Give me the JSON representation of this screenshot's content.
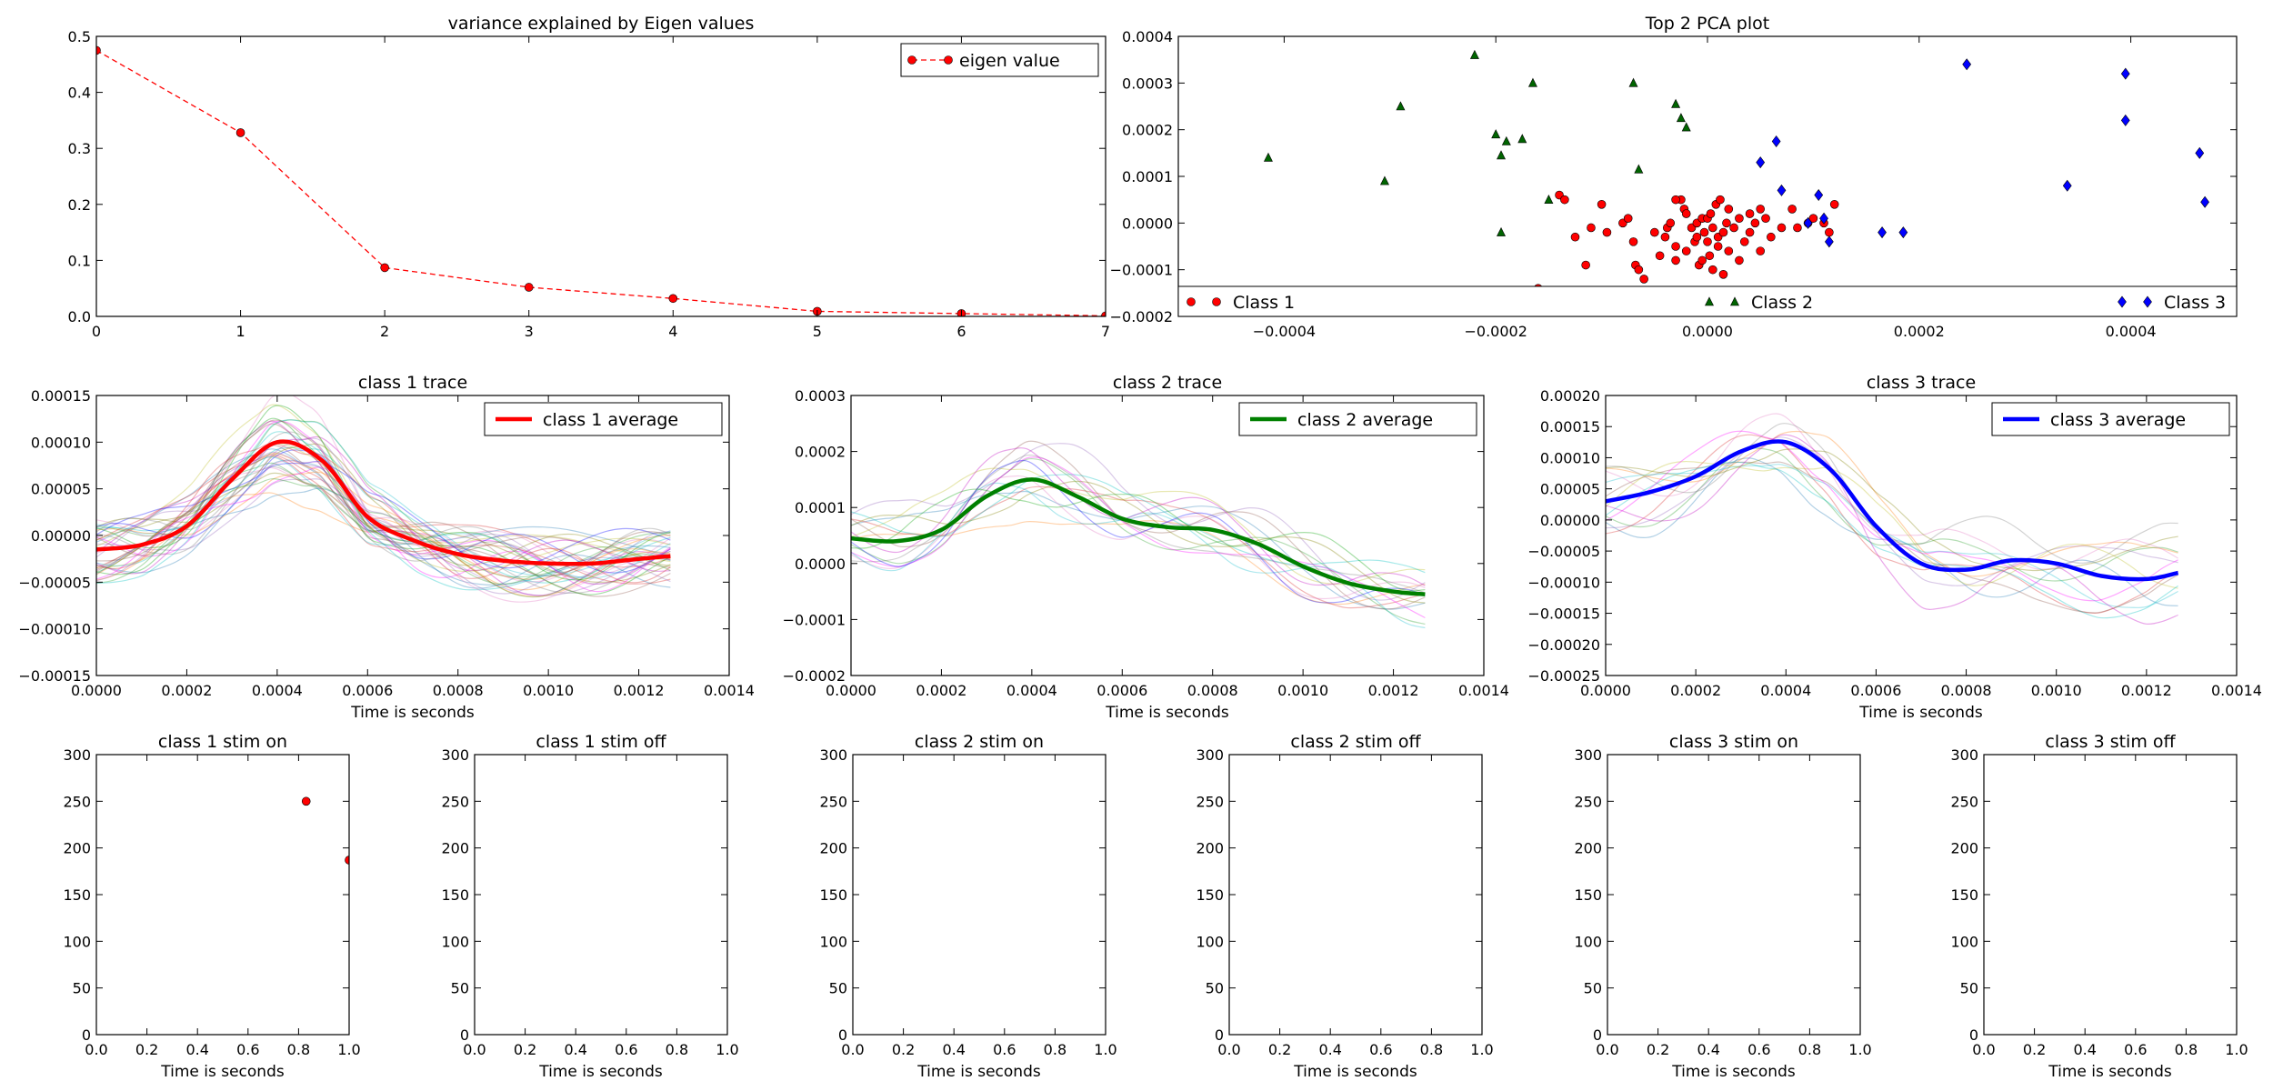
{
  "figure": {
    "background": "#ffffff"
  },
  "chart_data": [
    {
      "id": "eigen",
      "type": "line",
      "title": "variance explained by Eigen values",
      "xlabel": "",
      "ylabel": "",
      "xlim": [
        0,
        7
      ],
      "ylim": [
        0,
        0.5
      ],
      "xticks": [
        0,
        1,
        2,
        3,
        4,
        5,
        6,
        7
      ],
      "yticks": [
        0.0,
        0.1,
        0.2,
        0.3,
        0.4,
        0.5
      ],
      "xtick_labels": [
        "0",
        "1",
        "2",
        "3",
        "4",
        "5",
        "6",
        "7"
      ],
      "ytick_labels": [
        "0.0",
        "0.1",
        "0.2",
        "0.3",
        "0.4",
        "0.5"
      ],
      "grid": false,
      "legend_position": "top-right",
      "series": [
        {
          "name": "eigen value",
          "color": "#ff0000",
          "style": "dashed-markers",
          "x": [
            0,
            1,
            2,
            3,
            4,
            5,
            6,
            7
          ],
          "y": [
            0.475,
            0.328,
            0.087,
            0.052,
            0.032,
            0.009,
            0.005,
            0.001
          ]
        }
      ]
    },
    {
      "id": "pca",
      "type": "scatter",
      "title": "Top 2 PCA plot",
      "xlabel": "",
      "ylabel": "",
      "xlim": [
        -0.0005,
        0.0005
      ],
      "ylim": [
        -0.0002,
        0.0004
      ],
      "xticks": [
        -0.0004,
        -0.0002,
        0.0,
        0.0002,
        0.0004
      ],
      "yticks": [
        -0.0002,
        -0.0001,
        0.0,
        0.0001,
        0.0002,
        0.0003,
        0.0004
      ],
      "xtick_labels": [
        "−0.0004",
        "−0.0002",
        "0.0000",
        "0.0002",
        "0.0004"
      ],
      "ytick_labels": [
        "−0.0002",
        "−0.0001",
        "0.0000",
        "0.0001",
        "0.0002",
        "0.0003",
        "0.0004"
      ],
      "grid": false,
      "legend_position": "bottom (expanded across)",
      "series": [
        {
          "name": "Class 1",
          "color": "#ff0000",
          "marker": "circle",
          "points": [
            [
              -0.00014,
              6e-05
            ],
            [
              -0.000135,
              5e-05
            ],
            [
              -0.000125,
              -3e-05
            ],
            [
              -0.000115,
              -9e-05
            ],
            [
              -0.00011,
              -1e-05
            ],
            [
              -0.0001,
              4e-05
            ],
            [
              -9.5e-05,
              -2e-05
            ],
            [
              -8e-05,
              0.0
            ],
            [
              -7.5e-05,
              1e-05
            ],
            [
              -7e-05,
              -4e-05
            ],
            [
              -6.8e-05,
              -9e-05
            ],
            [
              -6.5e-05,
              -0.0001
            ],
            [
              -6e-05,
              -0.00012
            ],
            [
              -5e-05,
              -2e-05
            ],
            [
              -4.5e-05,
              -7e-05
            ],
            [
              -4e-05,
              -3e-05
            ],
            [
              -3.8e-05,
              -1e-05
            ],
            [
              -3.5e-05,
              0.0
            ],
            [
              -3e-05,
              -5e-05
            ],
            [
              -3e-05,
              -8e-05
            ],
            [
              -2.5e-05,
              5e-05
            ],
            [
              -2.2e-05,
              3e-05
            ],
            [
              -2e-05,
              2e-05
            ],
            [
              -2e-05,
              -6e-05
            ],
            [
              -1.5e-05,
              -1e-05
            ],
            [
              -1.2e-05,
              -4e-05
            ],
            [
              -1e-05,
              0.0
            ],
            [
              -1e-05,
              -3e-05
            ],
            [
              -8e-06,
              -9e-05
            ],
            [
              -5e-06,
              1e-05
            ],
            [
              -5e-06,
              -8e-05
            ],
            [
              -3e-06,
              -2e-05
            ],
            [
              0.0,
              1e-05
            ],
            [
              0.0,
              -4e-05
            ],
            [
              2e-06,
              -7e-05
            ],
            [
              3e-06,
              2e-05
            ],
            [
              5e-06,
              -0.0001
            ],
            [
              5e-06,
              -1e-05
            ],
            [
              8e-06,
              4e-05
            ],
            [
              1e-05,
              -3e-05
            ],
            [
              1e-05,
              -5e-05
            ],
            [
              1.2e-05,
              5e-05
            ],
            [
              1.5e-05,
              -2e-05
            ],
            [
              1.5e-05,
              -0.00011
            ],
            [
              1.8e-05,
              0.0
            ],
            [
              2e-05,
              3e-05
            ],
            [
              2e-05,
              -6e-05
            ],
            [
              2.5e-05,
              -1e-05
            ],
            [
              3e-05,
              1e-05
            ],
            [
              3e-05,
              -8e-05
            ],
            [
              3.5e-05,
              -4e-05
            ],
            [
              4e-05,
              2e-05
            ],
            [
              4e-05,
              -2e-05
            ],
            [
              4.5e-05,
              0.0
            ],
            [
              5e-05,
              -6e-05
            ],
            [
              5.5e-05,
              1e-05
            ],
            [
              6e-05,
              -3e-05
            ],
            [
              7e-05,
              -1e-05
            ],
            [
              8e-05,
              3e-05
            ],
            [
              8.5e-05,
              -1e-05
            ],
            [
              9.5e-05,
              0.0
            ],
            [
              0.0001,
              1e-05
            ],
            [
              0.00011,
              0.0
            ],
            [
              0.000115,
              -2e-05
            ],
            [
              0.00012,
              4e-05
            ],
            [
              -0.00016,
              -0.00014
            ],
            [
              -3e-05,
              5e-05
            ],
            [
              5e-05,
              3e-05
            ]
          ]
        },
        {
          "name": "Class 2",
          "color": "#006400",
          "marker": "triangle",
          "points": [
            [
              -0.000415,
              0.00014
            ],
            [
              -0.000305,
              9e-05
            ],
            [
              -0.00029,
              0.00025
            ],
            [
              -0.00022,
              0.00036
            ],
            [
              -0.0002,
              0.00019
            ],
            [
              -0.000195,
              0.000145
            ],
            [
              -0.000195,
              -2e-05
            ],
            [
              -0.00019,
              0.000175
            ],
            [
              -0.000175,
              0.00018
            ],
            [
              -0.000165,
              0.0003
            ],
            [
              -0.00015,
              5e-05
            ],
            [
              -7e-05,
              0.0003
            ],
            [
              -6.5e-05,
              0.000115
            ],
            [
              -3e-05,
              0.000255
            ],
            [
              -2.5e-05,
              0.000225
            ],
            [
              -2e-05,
              0.000205
            ],
            [
              -9e-05,
              -0.00016
            ]
          ]
        },
        {
          "name": "Class 3",
          "color": "#0000ff",
          "marker": "diamond",
          "points": [
            [
              5e-05,
              0.00013
            ],
            [
              6.5e-05,
              0.000175
            ],
            [
              7e-05,
              7e-05
            ],
            [
              9.5e-05,
              0.0
            ],
            [
              0.000105,
              6e-05
            ],
            [
              0.00011,
              1e-05
            ],
            [
              0.000115,
              -4e-05
            ],
            [
              0.000165,
              -2e-05
            ],
            [
              0.000185,
              -2e-05
            ],
            [
              0.000245,
              0.00034
            ],
            [
              0.00034,
              8e-05
            ],
            [
              0.000395,
              0.00032
            ],
            [
              0.000395,
              0.00022
            ],
            [
              0.000465,
              0.00015
            ],
            [
              0.00047,
              4.5e-05
            ]
          ]
        }
      ]
    },
    {
      "id": "trace1",
      "type": "line",
      "title": "class 1 trace",
      "xlabel": "Time is seconds",
      "ylabel": "",
      "xlim": [
        0,
        0.0014
      ],
      "ylim": [
        -0.00015,
        0.00015
      ],
      "xticks": [
        0,
        0.0002,
        0.0004,
        0.0006,
        0.0008,
        0.001,
        0.0012,
        0.0014
      ],
      "yticks": [
        -0.00015,
        -0.0001,
        -5e-05,
        0.0,
        5e-05,
        0.0001,
        0.00015
      ],
      "xtick_labels": [
        "0.0000",
        "0.0002",
        "0.0004",
        "0.0006",
        "0.0008",
        "0.0010",
        "0.0012",
        "0.0014"
      ],
      "ytick_labels": [
        "−0.00015",
        "−0.00010",
        "−0.00005",
        "0.00000",
        "0.00005",
        "0.00010",
        "0.00015"
      ],
      "grid": false,
      "legend_position": "top-right",
      "trace_count": 40,
      "trace_spread": 3.5e-05,
      "series": [
        {
          "name": "class 1 average",
          "color": "#ff0000",
          "x": [
            0,
            0.0001,
            0.0002,
            0.0003,
            0.0004,
            0.0005,
            0.0006,
            0.0007,
            0.0008,
            0.0009,
            0.001,
            0.0011,
            0.0012,
            0.00127
          ],
          "y": [
            -1.5e-05,
            -1e-05,
            1e-05,
            6e-05,
            0.0001,
            8e-05,
            2e-05,
            -5e-06,
            -2e-05,
            -2.7e-05,
            -3e-05,
            -3e-05,
            -2.5e-05,
            -2.2e-05
          ]
        }
      ]
    },
    {
      "id": "trace2",
      "type": "line",
      "title": "class 2 trace",
      "xlabel": "Time is seconds",
      "ylabel": "",
      "xlim": [
        0,
        0.0014
      ],
      "ylim": [
        -0.0002,
        0.0003
      ],
      "xticks": [
        0,
        0.0002,
        0.0004,
        0.0006,
        0.0008,
        0.001,
        0.0012,
        0.0014
      ],
      "yticks": [
        -0.0002,
        -0.0001,
        0.0,
        0.0001,
        0.0002,
        0.0003
      ],
      "xtick_labels": [
        "0.0000",
        "0.0002",
        "0.0004",
        "0.0006",
        "0.0008",
        "0.0010",
        "0.0012",
        "0.0014"
      ],
      "ytick_labels": [
        "−0.0002",
        "−0.0001",
        "0.0000",
        "0.0001",
        "0.0002",
        "0.0003"
      ],
      "grid": false,
      "legend_position": "top-right",
      "trace_count": 16,
      "trace_spread": 6e-05,
      "series": [
        {
          "name": "class 2 average",
          "color": "#008000",
          "x": [
            0,
            0.0001,
            0.0002,
            0.0003,
            0.0004,
            0.0005,
            0.0006,
            0.0007,
            0.0008,
            0.0009,
            0.001,
            0.0011,
            0.0012,
            0.00127
          ],
          "y": [
            4.5e-05,
            4e-05,
            6e-05,
            0.00012,
            0.00015,
            0.00012,
            8e-05,
            6.5e-05,
            6e-05,
            3.5e-05,
            -5e-06,
            -3.5e-05,
            -5e-05,
            -5.5e-05
          ]
        }
      ]
    },
    {
      "id": "trace3",
      "type": "line",
      "title": "class 3 trace",
      "xlabel": "Time is seconds",
      "ylabel": "",
      "xlim": [
        0,
        0.0014
      ],
      "ylim": [
        -0.00025,
        0.0002
      ],
      "xticks": [
        0,
        0.0002,
        0.0004,
        0.0006,
        0.0008,
        0.001,
        0.0012,
        0.0014
      ],
      "yticks": [
        -0.00025,
        -0.0002,
        -0.00015,
        -0.0001,
        -5e-05,
        0.0,
        5e-05,
        0.0001,
        0.00015,
        0.0002
      ],
      "xtick_labels": [
        "0.0000",
        "0.0002",
        "0.0004",
        "0.0006",
        "0.0008",
        "0.0010",
        "0.0012",
        "0.0014"
      ],
      "ytick_labels": [
        "−0.00025",
        "−0.00020",
        "−0.00015",
        "−0.00010",
        "−0.00005",
        "0.00000",
        "0.00005",
        "0.00010",
        "0.00015",
        "0.00020"
      ],
      "grid": false,
      "legend_position": "top-right",
      "trace_count": 14,
      "trace_spread": 6e-05,
      "series": [
        {
          "name": "class 3 average",
          "color": "#0000ff",
          "x": [
            0,
            0.0001,
            0.0002,
            0.0003,
            0.0004,
            0.0005,
            0.0006,
            0.0007,
            0.0008,
            0.0009,
            0.001,
            0.0011,
            0.0012,
            0.00127
          ],
          "y": [
            3e-05,
            4.5e-05,
            7e-05,
            0.00011,
            0.000125,
            8e-05,
            -1e-05,
            -7e-05,
            -8e-05,
            -6.5e-05,
            -7e-05,
            -9e-05,
            -9.5e-05,
            -8.5e-05
          ]
        }
      ]
    },
    {
      "id": "c1on",
      "type": "scatter",
      "title": "class 1 stim on",
      "xlabel": "Time is seconds",
      "ylabel": "",
      "xlim": [
        0,
        1
      ],
      "ylim": [
        0,
        300
      ],
      "xticks": [
        0,
        0.2,
        0.4,
        0.6,
        0.8,
        1.0
      ],
      "yticks": [
        0,
        50,
        100,
        150,
        200,
        250,
        300
      ],
      "xtick_labels": [
        "0.0",
        "0.2",
        "0.4",
        "0.6",
        "0.8",
        "1.0"
      ],
      "ytick_labels": [
        "0",
        "50",
        "100",
        "150",
        "200",
        "250",
        "300"
      ],
      "grid": false,
      "series": [
        {
          "color": "#ff0000",
          "marker": "circle",
          "points": [
            [
              0.83,
              250
            ],
            [
              1.0,
              187
            ]
          ]
        }
      ]
    },
    {
      "id": "c1off",
      "type": "scatter",
      "title": "class 1 stim off",
      "xlabel": "Time is seconds",
      "ylabel": "",
      "xlim": [
        0,
        1
      ],
      "ylim": [
        0,
        300
      ],
      "xticks": [
        0,
        0.2,
        0.4,
        0.6,
        0.8,
        1.0
      ],
      "yticks": [
        0,
        50,
        100,
        150,
        200,
        250,
        300
      ],
      "xtick_labels": [
        "0.0",
        "0.2",
        "0.4",
        "0.6",
        "0.8",
        "1.0"
      ],
      "ytick_labels": [
        "0",
        "50",
        "100",
        "150",
        "200",
        "250",
        "300"
      ],
      "grid": false,
      "series": []
    },
    {
      "id": "c2on",
      "type": "scatter",
      "title": "class 2 stim on",
      "xlabel": "Time is seconds",
      "ylabel": "",
      "xlim": [
        0,
        1
      ],
      "ylim": [
        0,
        300
      ],
      "xticks": [
        0,
        0.2,
        0.4,
        0.6,
        0.8,
        1.0
      ],
      "yticks": [
        0,
        50,
        100,
        150,
        200,
        250,
        300
      ],
      "xtick_labels": [
        "0.0",
        "0.2",
        "0.4",
        "0.6",
        "0.8",
        "1.0"
      ],
      "ytick_labels": [
        "0",
        "50",
        "100",
        "150",
        "200",
        "250",
        "300"
      ],
      "grid": false,
      "series": []
    },
    {
      "id": "c2off",
      "type": "scatter",
      "title": "class 2 stim off",
      "xlabel": "Time is seconds",
      "ylabel": "",
      "xlim": [
        0,
        1
      ],
      "ylim": [
        0,
        300
      ],
      "xticks": [
        0,
        0.2,
        0.4,
        0.6,
        0.8,
        1.0
      ],
      "yticks": [
        0,
        50,
        100,
        150,
        200,
        250,
        300
      ],
      "xtick_labels": [
        "0.0",
        "0.2",
        "0.4",
        "0.6",
        "0.8",
        "1.0"
      ],
      "ytick_labels": [
        "0",
        "50",
        "100",
        "150",
        "200",
        "250",
        "300"
      ],
      "grid": false,
      "series": []
    },
    {
      "id": "c3on",
      "type": "scatter",
      "title": "class 3 stim on",
      "xlabel": "Time is seconds",
      "ylabel": "",
      "xlim": [
        0,
        1
      ],
      "ylim": [
        0,
        300
      ],
      "xticks": [
        0,
        0.2,
        0.4,
        0.6,
        0.8,
        1.0
      ],
      "yticks": [
        0,
        50,
        100,
        150,
        200,
        250,
        300
      ],
      "xtick_labels": [
        "0.0",
        "0.2",
        "0.4",
        "0.6",
        "0.8",
        "1.0"
      ],
      "ytick_labels": [
        "0",
        "50",
        "100",
        "150",
        "200",
        "250",
        "300"
      ],
      "grid": false,
      "series": []
    },
    {
      "id": "c3off",
      "type": "scatter",
      "title": "class 3 stim off",
      "xlabel": "Time is seconds",
      "ylabel": "",
      "xlim": [
        0,
        1
      ],
      "ylim": [
        0,
        300
      ],
      "xticks": [
        0,
        0.2,
        0.4,
        0.6,
        0.8,
        1.0
      ],
      "yticks": [
        0,
        50,
        100,
        150,
        200,
        250,
        300
      ],
      "xtick_labels": [
        "0.0",
        "0.2",
        "0.4",
        "0.6",
        "0.8",
        "1.0"
      ],
      "ytick_labels": [
        "0",
        "50",
        "100",
        "150",
        "200",
        "250",
        "300"
      ],
      "grid": false,
      "series": []
    }
  ]
}
